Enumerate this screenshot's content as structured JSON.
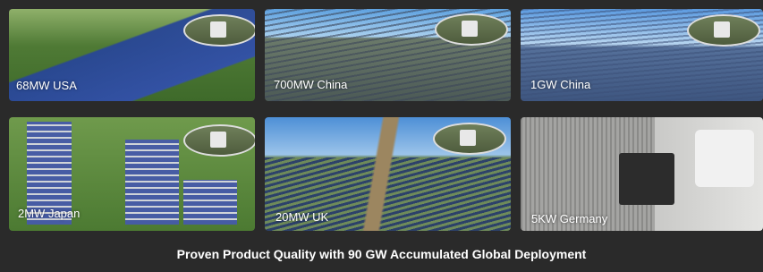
{
  "tiles": [
    {
      "label": "68MW USA"
    },
    {
      "label": "700MW China"
    },
    {
      "label": "1GW China"
    },
    {
      "label": "2MW Japan"
    },
    {
      "label": "20MW UK"
    },
    {
      "label": "5KW Germany"
    }
  ],
  "caption": "Proven Product Quality with 90 GW Accumulated Global Deployment"
}
